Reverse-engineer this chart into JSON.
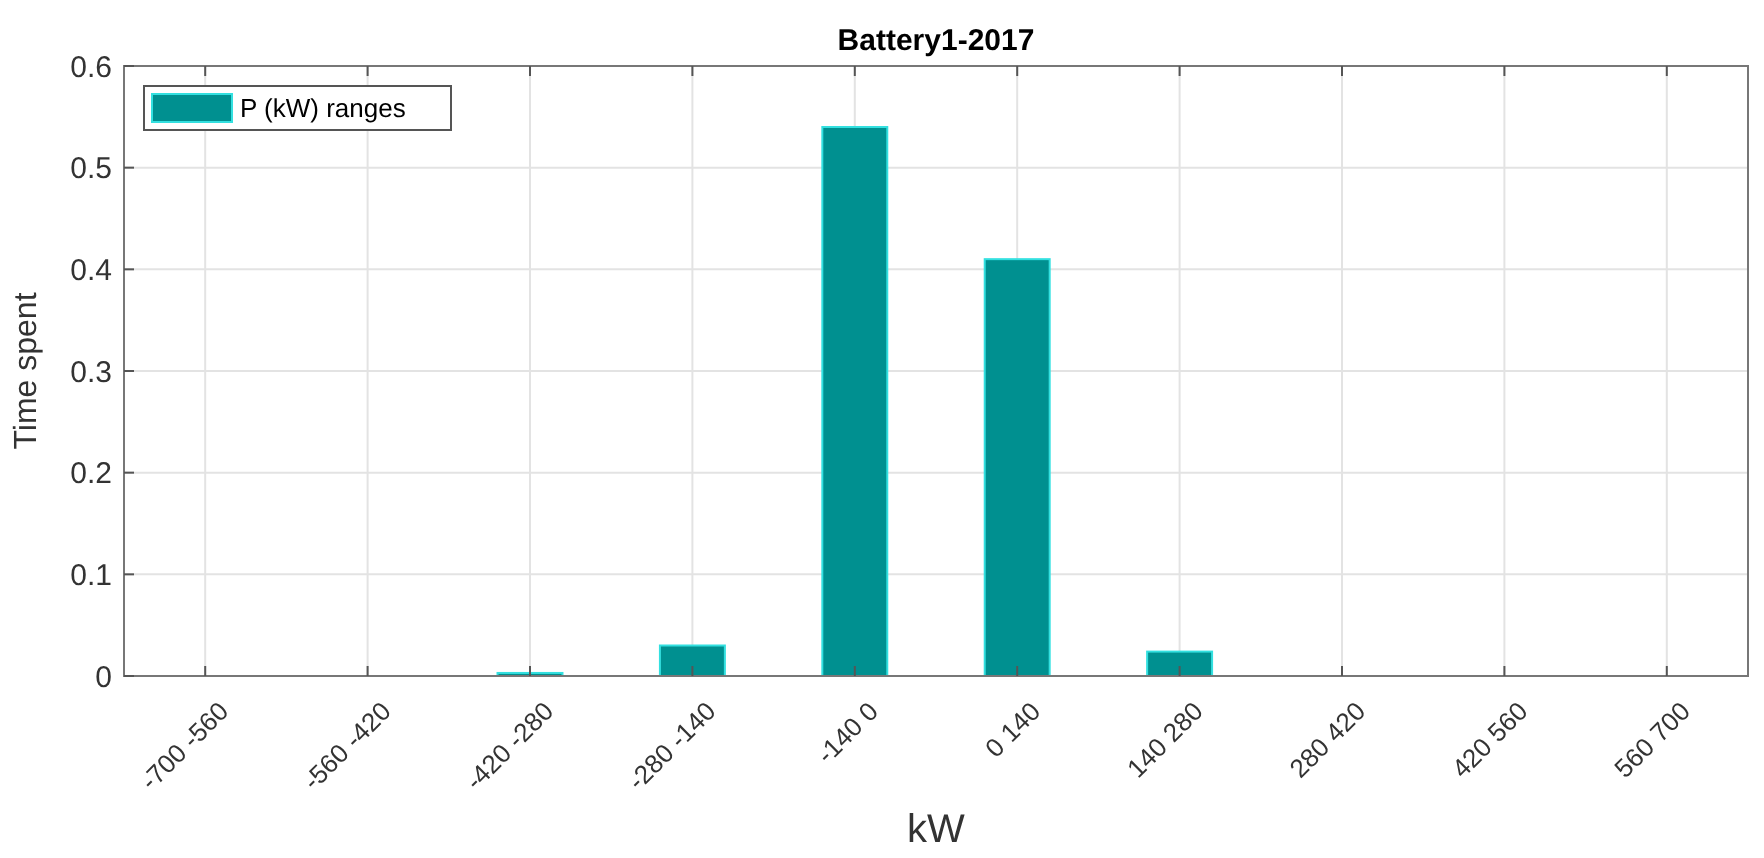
{
  "chart_data": {
    "type": "bar",
    "title": "Battery1-2017",
    "xlabel": "kW",
    "ylabel": "Time spent",
    "categories": [
      "-700 -560",
      "-560 -420",
      "-420 -280",
      "-280 -140",
      "-140 0",
      "0 140",
      "140 280",
      "280 420",
      "420 560",
      "560 700"
    ],
    "series": [
      {
        "name": "P (kW) ranges",
        "color": "#009090",
        "values": [
          0,
          0,
          0.003,
          0.03,
          0.54,
          0.41,
          0.024,
          0,
          0,
          0
        ]
      }
    ],
    "ylim": [
      0,
      0.6
    ],
    "yticks": [
      0,
      0.1,
      0.2,
      0.3,
      0.4,
      0.5,
      0.6
    ],
    "grid": true,
    "legend": "top left"
  }
}
